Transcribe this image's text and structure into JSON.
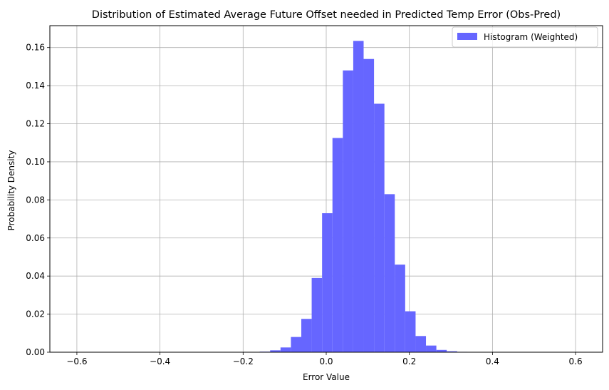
{
  "chart_data": {
    "type": "bar",
    "title": "Distribution of Estimated Average Future Offset needed in Predicted Temp Error (Obs-Pred)",
    "xlabel": "Error Value",
    "ylabel": "Probability Density",
    "xlim": [
      -0.665,
      0.665
    ],
    "ylim": [
      0.0,
      0.1715
    ],
    "xticks": [
      -0.6,
      -0.4,
      -0.2,
      0.0,
      0.2,
      0.4,
      0.6
    ],
    "xtick_labels": [
      "−0.6",
      "−0.4",
      "−0.2",
      "0.0",
      "0.2",
      "0.4",
      "0.6"
    ],
    "yticks": [
      0.0,
      0.02,
      0.04,
      0.06,
      0.08,
      0.1,
      0.12,
      0.14,
      0.16
    ],
    "ytick_labels": [
      "0.00",
      "0.02",
      "0.04",
      "0.06",
      "0.08",
      "0.10",
      "0.12",
      "0.14",
      "0.16"
    ],
    "grid": true,
    "legend_position": "top-right",
    "bar_color": "#6666ff",
    "bin_width": 0.025,
    "series": [
      {
        "name": "Histogram (Weighted)",
        "bin_left_edges": [
          -0.16,
          -0.135,
          -0.11,
          -0.085,
          -0.06,
          -0.035,
          -0.01,
          0.015,
          0.04,
          0.065,
          0.09,
          0.115,
          0.14,
          0.165,
          0.19,
          0.215,
          0.24,
          0.265,
          0.29,
          0.315
        ],
        "values": [
          0.0003,
          0.001,
          0.0025,
          0.008,
          0.0175,
          0.039,
          0.073,
          0.1125,
          0.148,
          0.1635,
          0.154,
          0.1305,
          0.083,
          0.046,
          0.0215,
          0.0085,
          0.0035,
          0.0012,
          0.0005,
          0.0002
        ]
      }
    ]
  }
}
